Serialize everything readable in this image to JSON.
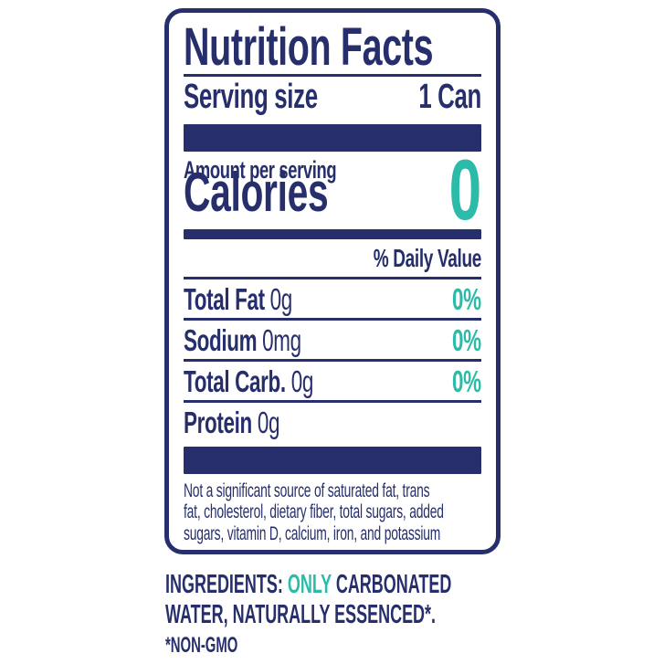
{
  "colors": {
    "navy": "#262F6B",
    "teal": "#2BBBA8",
    "background": "#FFFFFF"
  },
  "nutrition_label": {
    "title": "Nutrition Facts",
    "serving_size_label": "Serving size",
    "serving_size_value": "1 Can",
    "amount_per_serving_label": "Amount per serving",
    "calories_label": "Calories",
    "calories_value": "0",
    "daily_value_header": "% Daily Value",
    "nutrients": [
      {
        "name": "Total Fat",
        "amount": "0g",
        "daily_value": "0%"
      },
      {
        "name": "Sodium",
        "amount": "0mg",
        "daily_value": "0%"
      },
      {
        "name": "Total Carb.",
        "amount": "0g",
        "daily_value": "0%"
      },
      {
        "name": "Protein",
        "amount": "0g",
        "daily_value": ""
      }
    ],
    "footnote_lines": [
      "Not a significant source of saturated fat, trans",
      "fat, cholesterol, dietary fiber, total sugars, added",
      "sugars, vitamin D, calcium, iron, and potassium"
    ]
  },
  "ingredients": {
    "line1_prefix": "INGREDIENTS:",
    "line1_highlight": "ONLY",
    "line1_rest": "CARBONATED",
    "line2": "WATER, NATURALLY ESSENCED*.",
    "note": "*NON-GMO"
  }
}
